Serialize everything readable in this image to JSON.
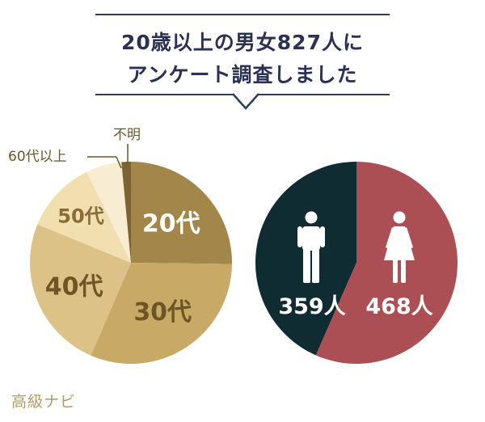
{
  "header": {
    "title_line1": "20歳以上の男女827人に",
    "title_line2": "アンケート調査しました"
  },
  "chart_data": [
    {
      "type": "pie",
      "categories": [
        "20代",
        "30代",
        "40代",
        "50代",
        "60代以上",
        "不明"
      ],
      "values": [
        25.2,
        31.3,
        24.7,
        11.6,
        5.7,
        1.5
      ],
      "colors": [
        "#a2864a",
        "#c8a965",
        "#ddc288",
        "#f2dfb0",
        "#f8ecd2",
        "#7a6433"
      ],
      "data_labels": [
        "20代",
        "30代",
        "40代",
        "50代",
        "",
        ""
      ],
      "callouts": [
        "60代以上",
        "不明"
      ]
    },
    {
      "type": "pie",
      "categories": [
        "男性",
        "女性"
      ],
      "values": [
        359,
        468
      ],
      "colors": [
        "#0f2c33",
        "#ac4f54"
      ],
      "data_labels": [
        "359人",
        "468人"
      ],
      "icons": [
        "male-figure-icon",
        "female-figure-icon"
      ]
    }
  ],
  "footer": {
    "watermark": "高級ナビ"
  }
}
